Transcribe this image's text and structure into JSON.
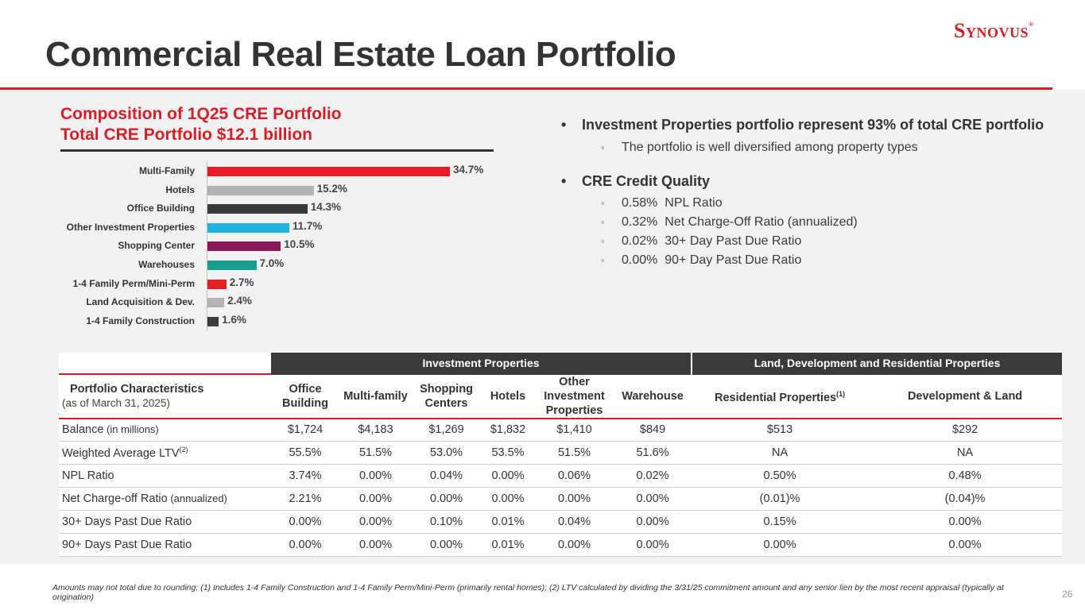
{
  "header": {
    "title": "Commercial Real Estate Loan Portfolio",
    "logo_text": "Synovus",
    "logo_mark": "®",
    "colors": {
      "accent": "#d71e28",
      "dark": "#333333",
      "panel": "#f2f2f2"
    }
  },
  "chart_title": {
    "line1": "Composition of 1Q25 CRE Portfolio",
    "line2": "Total CRE Portfolio $12.1 billion"
  },
  "chart_data": {
    "type": "bar",
    "orientation": "horizontal",
    "title": "Composition of 1Q25 CRE Portfolio",
    "xlabel": "",
    "ylabel": "",
    "xlim": [
      0,
      34.7
    ],
    "categories": [
      "Multi-Family",
      "Hotels",
      "Office Building",
      "Other Investment Properties",
      "Shopping Center",
      "Warehouses",
      "1-4 Family Perm/Mini-Perm",
      "Land Acquisition & Dev.",
      "1-4 Family Construction"
    ],
    "values": [
      34.7,
      15.2,
      14.3,
      11.7,
      10.5,
      7.0,
      2.7,
      2.4,
      1.6
    ],
    "value_labels": [
      "34.7%",
      "15.2%",
      "14.3%",
      "11.7%",
      "10.5%",
      "7.0%",
      "2.7%",
      "2.4%",
      "1.6%"
    ],
    "colors": [
      "#e31e26",
      "#b3b3b3",
      "#3a3a3a",
      "#1fb5e0",
      "#8b1a5a",
      "#1a9c8c",
      "#e31e26",
      "#b3b3b3",
      "#3a3a3a"
    ]
  },
  "bullets": {
    "b1": "Investment Properties portfolio represent 93% of total CRE portfolio",
    "b1_sub1": "The portfolio is well diversified among property types",
    "b2": "CRE Credit Quality",
    "b2_sub1": "0.58%  NPL Ratio",
    "b2_sub2": "0.32%  Net Charge-Off Ratio (annualized)",
    "b2_sub3": "0.02%  30+ Day Past Due Ratio",
    "b2_sub4": "0.00%  90+ Day Past Due Ratio"
  },
  "table": {
    "group_investment": "Investment Properties",
    "group_land": "Land, Development and Residential Properties",
    "row_header": "Portfolio Characteristics",
    "row_header_sub": "(as of March 31, 2025)",
    "col_office": "Office Building",
    "col_multifamily": "Multi-family",
    "col_shopping": "Shopping Centers",
    "col_hotels": "Hotels",
    "col_other": "Other Investment Properties",
    "col_warehouse": "Warehouse",
    "col_residential": "Residential Properties",
    "col_residential_fn": "(1)",
    "col_devland": "Development & Land",
    "rows": [
      {
        "label": "Balance",
        "qualifier": "(in millions)",
        "fn": "",
        "values": [
          "$1,724",
          "$4,183",
          "$1,269",
          "$1,832",
          "$1,410",
          "$849",
          "$513",
          "$292"
        ]
      },
      {
        "label": "Weighted Average LTV",
        "qualifier": "",
        "fn": "(2)",
        "values": [
          "55.5%",
          "51.5%",
          "53.0%",
          "53.5%",
          "51.5%",
          "51.6%",
          "NA",
          "NA"
        ]
      },
      {
        "label": "NPL Ratio",
        "qualifier": "",
        "fn": "",
        "values": [
          "3.74%",
          "0.00%",
          "0.04%",
          "0.00%",
          "0.06%",
          "0.02%",
          "0.50%",
          "0.48%"
        ]
      },
      {
        "label": "Net Charge-off Ratio",
        "qualifier": "(annualized)",
        "fn": "",
        "values": [
          "2.21%",
          "0.00%",
          "0.00%",
          "0.00%",
          "0.00%",
          "0.00%",
          "(0.01)%",
          "(0.04)%"
        ]
      },
      {
        "label": "30+ Days Past Due Ratio",
        "qualifier": "",
        "fn": "",
        "values": [
          "0.00%",
          "0.00%",
          "0.10%",
          "0.01%",
          "0.04%",
          "0.00%",
          "0.15%",
          "0.00%"
        ]
      },
      {
        "label": "90+ Days Past Due Ratio",
        "qualifier": "",
        "fn": "",
        "values": [
          "0.00%",
          "0.00%",
          "0.00%",
          "0.01%",
          "0.00%",
          "0.00%",
          "0.00%",
          "0.00%"
        ]
      }
    ]
  },
  "footnote": "Amounts may not total due to rounding; (1) Includes 1-4 Family Construction and 1-4 Family Perm/Mini-Perm (primarily rental homes); (2) LTV calculated by dividing the 3/31/25 commitment amount and any senior lien by the most recent appraisal (typically at origination)",
  "page_number": "26"
}
